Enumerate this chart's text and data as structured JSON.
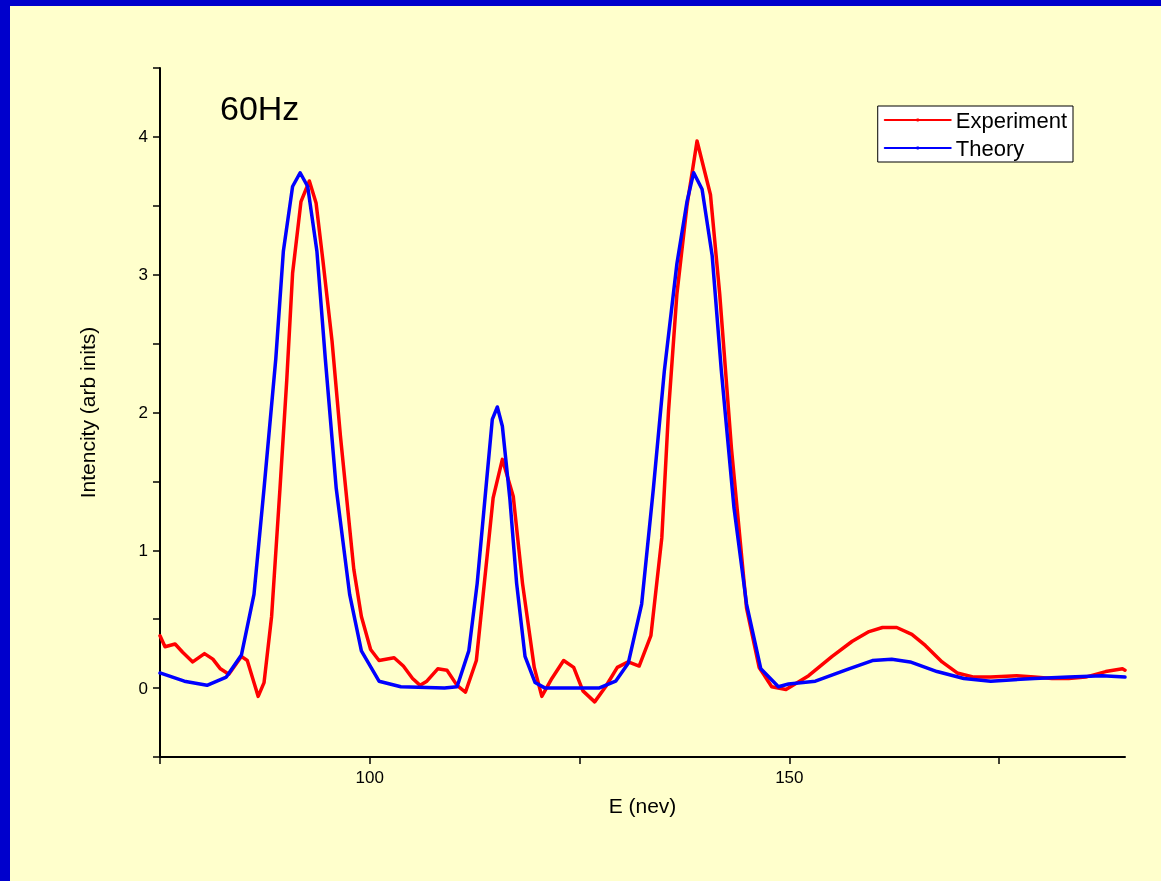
{
  "chart_data": {
    "type": "line",
    "title": "60Hz",
    "xlabel": "E (nev)",
    "ylabel": "Intencity (arb inits)",
    "xlim": [
      75,
      190
    ],
    "ylim": [
      -0.5,
      4.5
    ],
    "xticks": [
      {
        "value": 75,
        "label": null
      },
      100,
      {
        "value": 125,
        "label": null
      },
      150,
      {
        "value": 175,
        "label": null
      }
    ],
    "yticks": [
      {
        "value": -0.5,
        "label": null
      },
      0,
      {
        "value": 0.5,
        "label": null
      },
      1,
      {
        "value": 1.5,
        "label": null
      },
      2,
      {
        "value": 2.5,
        "label": null
      },
      3,
      {
        "value": 3.5,
        "label": null
      },
      4,
      {
        "value": 4.5,
        "label": null
      }
    ],
    "grid": false,
    "legend": "top right",
    "marker": "none",
    "line_style": "solid",
    "series": [
      {
        "name": "Experiment",
        "color": "#ff0000",
        "x": [
          75.0,
          75.6,
          76.8,
          77.7,
          78.9,
          80.3,
          81.3,
          82.2,
          83.2,
          84.7,
          85.4,
          86.7,
          87.4,
          88.3,
          89.3,
          90.1,
          90.8,
          91.8,
          92.8,
          93.6,
          94.4,
          95.5,
          96.5,
          98.1,
          99.0,
          100.1,
          101.1,
          102.9,
          104.0,
          105.1,
          106.0,
          106.8,
          108.1,
          109.2,
          110.4,
          111.4,
          112.7,
          114.7,
          115.8,
          117.1,
          118.2,
          119.6,
          120.5,
          121.7,
          123.1,
          124.3,
          125.4,
          126.8,
          128.1,
          129.5,
          130.8,
          132.1,
          133.5,
          134.8,
          135.6,
          136.6,
          137.8,
          139.0,
          140.6,
          141.7,
          143.1,
          144.9,
          146.4,
          147.9,
          149.6,
          152.3,
          155.1,
          157.5,
          159.5,
          161.1,
          162.8,
          164.6,
          166.2,
          168.2,
          170.0,
          172.0,
          174.0,
          177.1,
          179.2,
          181.3,
          183.3,
          185.3,
          187.7,
          189.7,
          190.0
        ],
        "values": [
          0.38,
          0.3,
          0.32,
          0.26,
          0.19,
          0.25,
          0.21,
          0.14,
          0.1,
          0.23,
          0.2,
          -0.06,
          0.04,
          0.52,
          1.45,
          2.23,
          3.01,
          3.53,
          3.68,
          3.52,
          3.11,
          2.52,
          1.83,
          0.86,
          0.52,
          0.28,
          0.2,
          0.22,
          0.16,
          0.07,
          0.02,
          0.05,
          0.14,
          0.13,
          0.02,
          -0.03,
          0.2,
          1.38,
          1.66,
          1.39,
          0.76,
          0.15,
          -0.06,
          0.07,
          0.2,
          0.15,
          -0.02,
          -0.1,
          0.01,
          0.15,
          0.19,
          0.16,
          0.38,
          1.09,
          2.01,
          2.86,
          3.5,
          3.97,
          3.58,
          2.86,
          1.74,
          0.58,
          0.15,
          0.01,
          -0.01,
          0.09,
          0.23,
          0.34,
          0.41,
          0.44,
          0.44,
          0.39,
          0.31,
          0.19,
          0.11,
          0.08,
          0.08,
          0.09,
          0.08,
          0.07,
          0.07,
          0.08,
          0.12,
          0.14,
          0.13
        ]
      },
      {
        "name": "Theory",
        "color": "#0000ff",
        "x": [
          75.0,
          77.9,
          80.6,
          82.9,
          84.7,
          86.2,
          87.4,
          88.8,
          89.7,
          90.8,
          91.7,
          92.6,
          93.7,
          94.7,
          96.0,
          97.6,
          99.0,
          101.1,
          103.7,
          108.9,
          110.4,
          111.8,
          112.8,
          113.9,
          114.6,
          115.2,
          115.8,
          116.7,
          117.5,
          118.5,
          119.7,
          120.9,
          127.3,
          129.3,
          130.8,
          132.4,
          133.8,
          135.1,
          136.6,
          137.8,
          138.6,
          139.6,
          140.8,
          141.9,
          143.4,
          144.9,
          146.6,
          148.7,
          149.9,
          153.1,
          157.1,
          159.9,
          162.2,
          164.4,
          167.6,
          170.8,
          174.0,
          179.2,
          183.3,
          187.3,
          190.0
        ],
        "values": [
          0.11,
          0.05,
          0.02,
          0.08,
          0.24,
          0.68,
          1.45,
          2.39,
          3.17,
          3.64,
          3.74,
          3.64,
          3.17,
          2.39,
          1.45,
          0.68,
          0.27,
          0.05,
          0.01,
          0.0,
          0.01,
          0.27,
          0.76,
          1.49,
          1.95,
          2.04,
          1.9,
          1.37,
          0.76,
          0.23,
          0.04,
          0.0,
          0.0,
          0.05,
          0.18,
          0.61,
          1.45,
          2.3,
          3.08,
          3.53,
          3.74,
          3.62,
          3.14,
          2.3,
          1.31,
          0.61,
          0.14,
          0.01,
          0.03,
          0.05,
          0.14,
          0.2,
          0.21,
          0.19,
          0.12,
          0.07,
          0.05,
          0.07,
          0.08,
          0.09,
          0.08
        ]
      }
    ]
  }
}
